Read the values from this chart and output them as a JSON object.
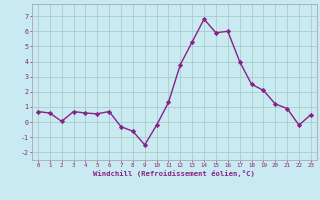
{
  "x": [
    0,
    1,
    2,
    3,
    4,
    5,
    6,
    7,
    8,
    9,
    10,
    11,
    12,
    13,
    14,
    15,
    16,
    17,
    18,
    19,
    20,
    21,
    22,
    23
  ],
  "y": [
    0.7,
    0.6,
    0.05,
    0.7,
    0.6,
    0.55,
    0.7,
    -0.3,
    -0.6,
    -1.5,
    -0.2,
    1.3,
    3.8,
    5.3,
    6.8,
    5.9,
    6.0,
    4.0,
    2.5,
    2.1,
    1.2,
    0.9,
    -0.2,
    0.5
  ],
  "line_color": "#882288",
  "marker_color": "#882288",
  "bg_color": "#c8eaf0",
  "grid_color": "#aacccc",
  "xlabel": "Windchill (Refroidissement éolien,°C)",
  "xlabel_color": "#882288",
  "xtick_labels": [
    "0",
    "1",
    "2",
    "3",
    "4",
    "5",
    "6",
    "7",
    "8",
    "9",
    "10",
    "11",
    "12",
    "13",
    "14",
    "15",
    "16",
    "17",
    "18",
    "19",
    "20",
    "21",
    "22",
    "23"
  ],
  "ytick_labels": [
    "-2",
    "-1",
    "0",
    "1",
    "2",
    "3",
    "4",
    "5",
    "6",
    "7"
  ],
  "yticks": [
    -2,
    -1,
    0,
    1,
    2,
    3,
    4,
    5,
    6,
    7
  ],
  "ylim": [
    -2.5,
    7.8
  ],
  "xlim": [
    -0.5,
    23.5
  ],
  "tick_color": "#882288",
  "spine_color": "#aaaaaa"
}
